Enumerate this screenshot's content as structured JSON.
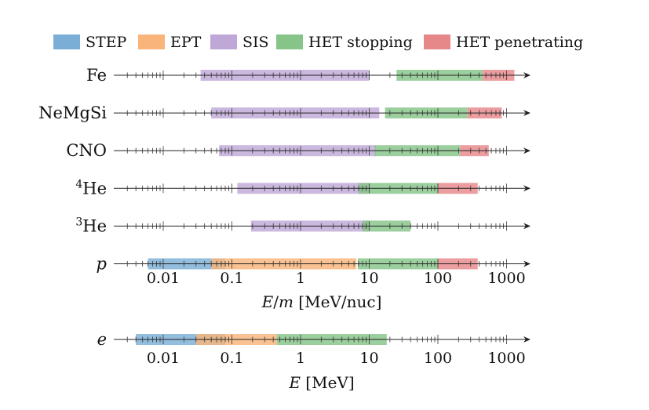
{
  "chart_data": {
    "type": "range-bar",
    "x_scale": "log",
    "legend": [
      {
        "name": "STEP",
        "color": "#7aaed6"
      },
      {
        "name": "EPT",
        "color": "#f9b47a"
      },
      {
        "name": "SIS",
        "color": "#bfa8d8"
      },
      {
        "name": "HET stopping",
        "color": "#86c489"
      },
      {
        "name": "HET penetrating",
        "color": "#e6878a"
      }
    ],
    "legend_placement": "top",
    "panels": [
      {
        "id": "ions",
        "xlabel_var": "E",
        "xlabel_sep": "/",
        "xlabel_var2": "m",
        "xlabel_unit": "[MeV/nuc]",
        "xlim": [
          0.002,
          3000
        ],
        "tick_labels": [
          "0.01",
          "0.1",
          "1",
          "10",
          "100",
          "1000"
        ],
        "tick_values": [
          0.01,
          0.1,
          1,
          10,
          100,
          1000
        ],
        "rows": [
          {
            "label": "Fe",
            "ranges": [
              {
                "instrument": "SIS",
                "min": 0.035,
                "max": 10
              },
              {
                "instrument": "HET stopping",
                "min": 25,
                "max": 450
              },
              {
                "instrument": "HET penetrating",
                "min": 450,
                "max": 1300
              }
            ]
          },
          {
            "label": "NeMgSi",
            "ranges": [
              {
                "instrument": "SIS",
                "min": 0.05,
                "max": 14
              },
              {
                "instrument": "HET stopping",
                "min": 17,
                "max": 270
              },
              {
                "instrument": "HET penetrating",
                "min": 270,
                "max": 850
              }
            ]
          },
          {
            "label": "CNO",
            "ranges": [
              {
                "instrument": "SIS",
                "min": 0.065,
                "max": 12.5
              },
              {
                "instrument": "HET stopping",
                "min": 12,
                "max": 210
              },
              {
                "instrument": "HET penetrating",
                "min": 210,
                "max": 550
              }
            ]
          },
          {
            "label": "He",
            "label_sup": "4",
            "ranges": [
              {
                "instrument": "SIS",
                "min": 0.12,
                "max": 10
              },
              {
                "instrument": "HET stopping",
                "min": 7,
                "max": 100
              },
              {
                "instrument": "HET penetrating",
                "min": 100,
                "max": 380
              }
            ]
          },
          {
            "label": "He",
            "label_sup": "3",
            "ranges": [
              {
                "instrument": "SIS",
                "min": 0.19,
                "max": 10
              },
              {
                "instrument": "HET stopping",
                "min": 8,
                "max": 40
              }
            ]
          },
          {
            "label": "p",
            "italic": true,
            "ranges": [
              {
                "instrument": "STEP",
                "min": 0.006,
                "max": 0.08
              },
              {
                "instrument": "EPT",
                "min": 0.05,
                "max": 6.5
              },
              {
                "instrument": "HET stopping",
                "min": 6.8,
                "max": 100
              },
              {
                "instrument": "HET penetrating",
                "min": 100,
                "max": 380
              }
            ]
          }
        ]
      },
      {
        "id": "electrons",
        "xlabel_var": "E",
        "xlabel_sep": "",
        "xlabel_var2": "",
        "xlabel_unit": "[MeV]",
        "xlim": [
          0.002,
          3000
        ],
        "tick_labels": [
          "0.01",
          "0.1",
          "1",
          "10",
          "100",
          "1000"
        ],
        "tick_values": [
          0.01,
          0.1,
          1,
          10,
          100,
          1000
        ],
        "rows": [
          {
            "label": "e",
            "italic": true,
            "ranges": [
              {
                "instrument": "STEP",
                "min": 0.004,
                "max": 0.08
              },
              {
                "instrument": "EPT",
                "min": 0.03,
                "max": 0.45
              },
              {
                "instrument": "HET stopping",
                "min": 0.45,
                "max": 18
              }
            ]
          }
        ]
      }
    ]
  }
}
